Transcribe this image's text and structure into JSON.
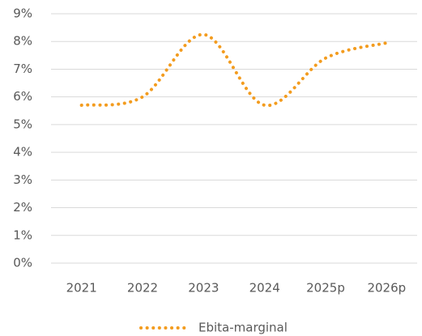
{
  "chart_data": {
    "type": "line",
    "categories": [
      "2021",
      "2022",
      "2023",
      "2024",
      "2025p",
      "2026p"
    ],
    "series": [
      {
        "name": "Ebita-marginal",
        "color": "#f39c1f",
        "values": [
          5.7,
          6.0,
          8.25,
          5.7,
          7.4,
          7.95
        ]
      }
    ],
    "ylim": [
      0,
      9
    ],
    "yticks": [
      {
        "value": 0,
        "label": "0%"
      },
      {
        "value": 1,
        "label": "1%"
      },
      {
        "value": 2,
        "label": "2%"
      },
      {
        "value": 3,
        "label": "3%"
      },
      {
        "value": 4,
        "label": "4%"
      },
      {
        "value": 5,
        "label": "5%"
      },
      {
        "value": 6,
        "label": "6%"
      },
      {
        "value": 7,
        "label": "7%"
      },
      {
        "value": 8,
        "label": "8%"
      },
      {
        "value": 9,
        "label": "9%"
      }
    ],
    "grid": true,
    "smooth": true,
    "line_style": "dotted",
    "legend": "bottom"
  }
}
